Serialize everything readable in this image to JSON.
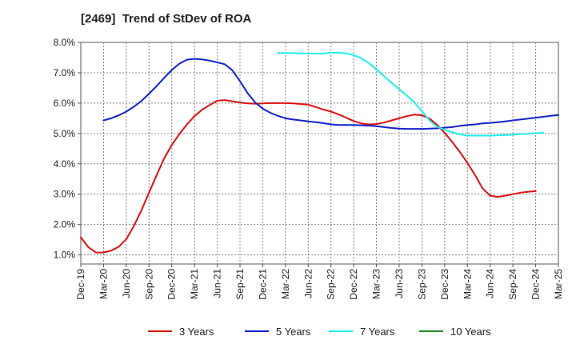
{
  "chart_data": {
    "type": "line",
    "title": "[2469]  Trend of StDev of ROA",
    "x_ticks": [
      "Dec-19",
      "Mar-20",
      "Jun-20",
      "Sep-20",
      "Dec-20",
      "Mar-21",
      "Jun-21",
      "Sep-21",
      "Dec-21",
      "Mar-22",
      "Jun-22",
      "Sep-22",
      "Dec-22",
      "Mar-23",
      "Jun-23",
      "Sep-23",
      "Dec-23",
      "Mar-24",
      "Jun-24",
      "Sep-24",
      "Dec-24",
      "Mar-25"
    ],
    "y_ticks": [
      "1.0%",
      "2.0%",
      "3.0%",
      "4.0%",
      "5.0%",
      "6.0%",
      "7.0%",
      "8.0%"
    ],
    "ylim": [
      0.7,
      8.0
    ],
    "grid": true,
    "legend_position": "bottom",
    "series": [
      {
        "name": "3 Years",
        "color": "#dd1111",
        "values": [
          1.58,
          1.25,
          1.08,
          1.08,
          1.14,
          1.27,
          1.52,
          1.95,
          2.47,
          3.05,
          3.63,
          4.18,
          4.62,
          4.98,
          5.3,
          5.57,
          5.78,
          5.94,
          6.08,
          6.1,
          6.06,
          6.02,
          5.99,
          5.98,
          5.99,
          6.0,
          6.0,
          6.0,
          5.99,
          5.97,
          5.95,
          5.87,
          5.79,
          5.72,
          5.63,
          5.52,
          5.41,
          5.33,
          5.3,
          5.31,
          5.36,
          5.43,
          5.5,
          5.57,
          5.62,
          5.6,
          5.49,
          5.28,
          5.02,
          4.72,
          4.39,
          4.03,
          3.63,
          3.19,
          2.95,
          2.91,
          2.95,
          3.0,
          3.05,
          3.08,
          3.1
        ]
      },
      {
        "name": "5 Years",
        "color": "#1122cc",
        "values": [
          null,
          null,
          null,
          5.43,
          5.5,
          5.6,
          5.72,
          5.88,
          6.07,
          6.31,
          6.56,
          6.83,
          7.09,
          7.3,
          7.43,
          7.46,
          7.44,
          7.4,
          7.34,
          7.28,
          7.08,
          6.72,
          6.33,
          6.02,
          5.82,
          5.68,
          5.58,
          5.5,
          5.46,
          5.43,
          5.4,
          5.37,
          5.34,
          5.3,
          5.28,
          5.28,
          5.28,
          5.27,
          5.26,
          5.24,
          5.21,
          5.18,
          5.16,
          5.15,
          5.15,
          5.15,
          5.16,
          5.17,
          5.19,
          5.21,
          5.25,
          5.28,
          5.3,
          5.33,
          5.35,
          5.37,
          5.4,
          5.43,
          5.46,
          5.49,
          5.52,
          5.55,
          5.58,
          5.61
        ]
      },
      {
        "name": "7 Years",
        "color": "#22eeee",
        "values": [
          null,
          null,
          null,
          null,
          null,
          null,
          null,
          null,
          null,
          null,
          null,
          null,
          null,
          null,
          null,
          null,
          null,
          null,
          null,
          null,
          null,
          null,
          null,
          null,
          null,
          null,
          7.65,
          7.65,
          7.65,
          7.64,
          7.64,
          7.63,
          7.64,
          7.66,
          7.66,
          7.64,
          7.58,
          7.48,
          7.32,
          7.11,
          6.89,
          6.67,
          6.46,
          6.25,
          6.02,
          5.74,
          5.43,
          5.22,
          5.12,
          5.04,
          4.97,
          4.93,
          4.93,
          4.93,
          4.93,
          4.94,
          4.95,
          4.96,
          4.98,
          4.99,
          5.01,
          5.03
        ]
      },
      {
        "name": "10 Years",
        "color": "#228822",
        "values": []
      }
    ]
  }
}
